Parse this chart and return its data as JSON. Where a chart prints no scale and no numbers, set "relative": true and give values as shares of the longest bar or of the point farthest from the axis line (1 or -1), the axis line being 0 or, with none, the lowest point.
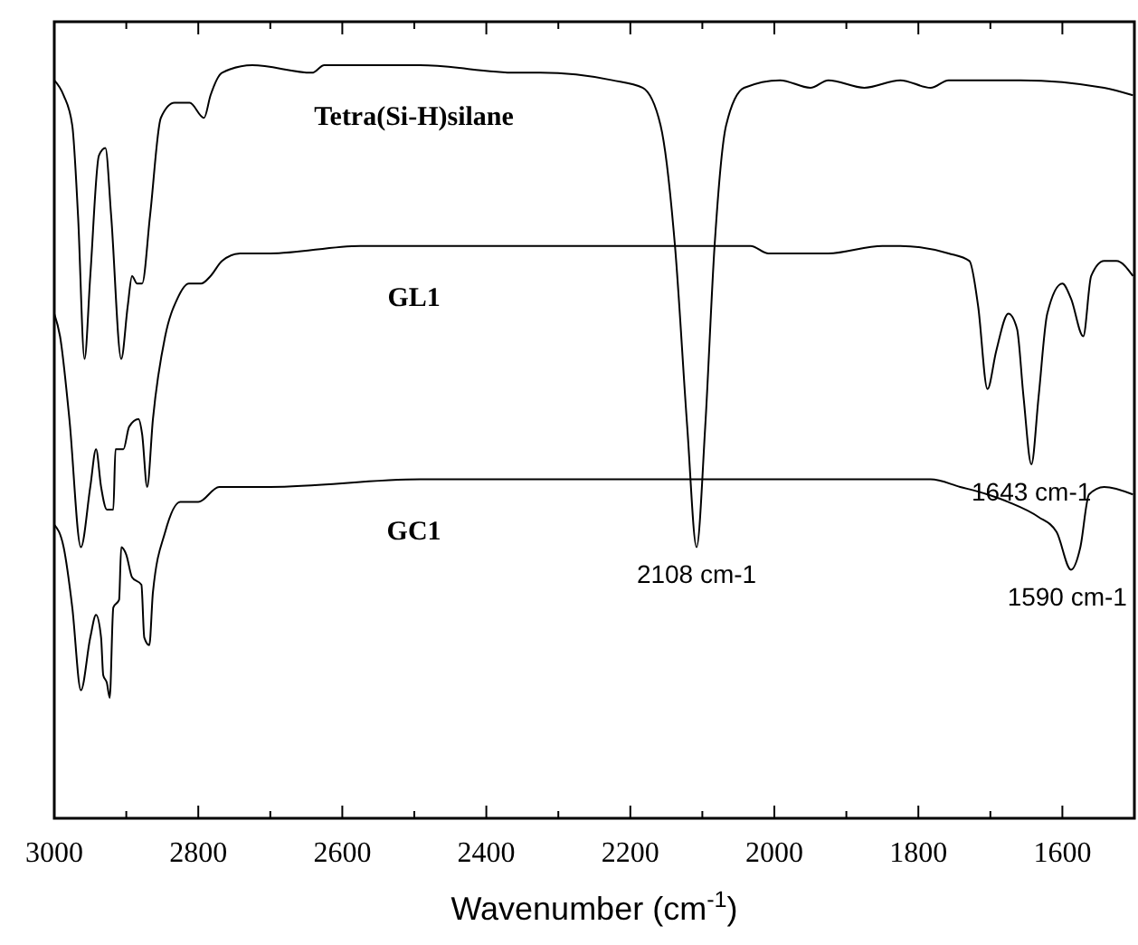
{
  "chart_data": {
    "type": "line",
    "relative": true,
    "xlabel": "Wavenumber  (cm$^{-1}$)",
    "xlim": [
      3000,
      1500
    ],
    "xticks": [
      3000,
      {
        "value": 2900,
        "label": null
      },
      2800,
      {
        "value": 2700,
        "label": null
      },
      2600,
      {
        "value": 2500,
        "label": null
      },
      2400,
      {
        "value": 2300,
        "label": null
      },
      2200,
      {
        "value": 2100,
        "label": null
      },
      2000,
      {
        "value": 1900,
        "label": null
      },
      1800,
      {
        "value": 1700,
        "label": null
      },
      1600
    ],
    "marker": "none",
    "line_style": "solid",
    "series": [
      {
        "name": "Tetra(Si-H)silane",
        "color": "#000000",
        "x": [
          3000,
          2987,
          2975,
          2967,
          2958,
          2950,
          2938,
          2929,
          2921,
          2907,
          2898,
          2892,
          2885,
          2878,
          2867,
          2852,
          2833,
          2812,
          2792,
          2783,
          2767,
          2725,
          2642,
          2625,
          2492,
          2358,
          2325,
          2225,
          2183,
          2158,
          2138,
          2121,
          2108,
          2096,
          2083,
          2067,
          2042,
          1992,
          1950,
          1925,
          1875,
          1825,
          1783,
          1758,
          1658,
          1542,
          1502
        ],
        "values": [
          0.98,
          0.96,
          0.92,
          0.8,
          0.61,
          0.72,
          0.88,
          0.89,
          0.8,
          0.61,
          0.68,
          0.72,
          0.71,
          0.71,
          0.8,
          0.93,
          0.95,
          0.95,
          0.93,
          0.96,
          0.99,
          1.0,
          0.99,
          1.0,
          1.0,
          0.99,
          0.99,
          0.98,
          0.97,
          0.92,
          0.76,
          0.52,
          0.36,
          0.52,
          0.76,
          0.92,
          0.97,
          0.98,
          0.97,
          0.98,
          0.97,
          0.98,
          0.97,
          0.98,
          0.98,
          0.97,
          0.96
        ]
      },
      {
        "name": "GL1",
        "color": "#000000",
        "x": [
          3000,
          2992,
          2979,
          2963,
          2950,
          2942,
          2935,
          2927,
          2918,
          2915,
          2904,
          2896,
          2883,
          2878,
          2871,
          2863,
          2846,
          2829,
          2813,
          2796,
          2783,
          2767,
          2742,
          2700,
          2575,
          2325,
          2158,
          2033,
          2008,
          1925,
          1850,
          1825,
          1758,
          1729,
          1717,
          1704,
          1692,
          1675,
          1663,
          1654,
          1643,
          1633,
          1621,
          1600,
          1588,
          1571,
          1560,
          1542,
          1525,
          1502
        ],
        "values": [
          0.67,
          0.64,
          0.53,
          0.36,
          0.44,
          0.49,
          0.44,
          0.41,
          0.41,
          0.49,
          0.49,
          0.52,
          0.53,
          0.51,
          0.44,
          0.53,
          0.64,
          0.69,
          0.71,
          0.71,
          0.72,
          0.74,
          0.75,
          0.75,
          0.76,
          0.76,
          0.76,
          0.76,
          0.75,
          0.75,
          0.76,
          0.76,
          0.75,
          0.74,
          0.68,
          0.57,
          0.62,
          0.67,
          0.65,
          0.56,
          0.47,
          0.56,
          0.67,
          0.71,
          0.69,
          0.64,
          0.72,
          0.74,
          0.74,
          0.72
        ]
      },
      {
        "name": "GC1",
        "color": "#000000",
        "x": [
          3000,
          2987,
          2975,
          2963,
          2950,
          2942,
          2935,
          2932,
          2927,
          2923,
          2918,
          2910,
          2907,
          2900,
          2892,
          2879,
          2875,
          2868,
          2863,
          2846,
          2825,
          2800,
          2771,
          2700,
          2492,
          2325,
          2075,
          1783,
          1742,
          1704,
          1675,
          1633,
          1608,
          1588,
          1575,
          1563,
          1542,
          1502
        ],
        "values": [
          0.39,
          0.36,
          0.28,
          0.17,
          0.24,
          0.27,
          0.24,
          0.19,
          0.18,
          0.16,
          0.28,
          0.29,
          0.36,
          0.35,
          0.32,
          0.31,
          0.24,
          0.23,
          0.3,
          0.38,
          0.42,
          0.42,
          0.44,
          0.44,
          0.45,
          0.45,
          0.45,
          0.45,
          0.44,
          0.43,
          0.42,
          0.4,
          0.38,
          0.33,
          0.36,
          0.43,
          0.44,
          0.43
        ]
      }
    ],
    "annotations": [
      {
        "text": "2108 cm-1",
        "x": 2108,
        "y": 0.36
      },
      {
        "text": "1643 cm-1",
        "x": 1643,
        "y": 0.47
      },
      {
        "text": "1590 cm-1",
        "x": 1588,
        "y": 0.33
      }
    ]
  }
}
